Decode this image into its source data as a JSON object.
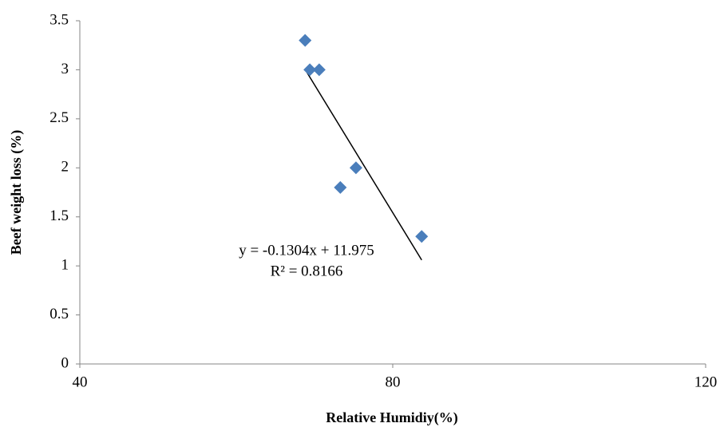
{
  "chart_data": {
    "type": "scatter",
    "x_label": "Relative Humidiy(%)",
    "y_label": "Beef  weight loss (%)",
    "series": [
      {
        "name": "Beef weight loss",
        "color": "#4a7ebb",
        "x": [
          68.8,
          69.4,
          70.6,
          75.3,
          73.3,
          83.7
        ],
        "values": [
          3.3,
          3.0,
          3.0,
          2.0,
          1.8,
          1.3
        ]
      }
    ],
    "trendline": {
      "slope": -0.1304,
      "intercept": 11.975,
      "color": "#000000",
      "equation": "y = -0.1304x + 11.975",
      "r_squared": "R² = 0.8166"
    },
    "xlim": [
      40,
      120
    ],
    "xticks": [
      40,
      80,
      120
    ],
    "ylim": [
      0,
      3.5
    ],
    "yticks": [
      0,
      0.5,
      1,
      1.5,
      2,
      2.5,
      3,
      3.5
    ],
    "grid": false
  }
}
